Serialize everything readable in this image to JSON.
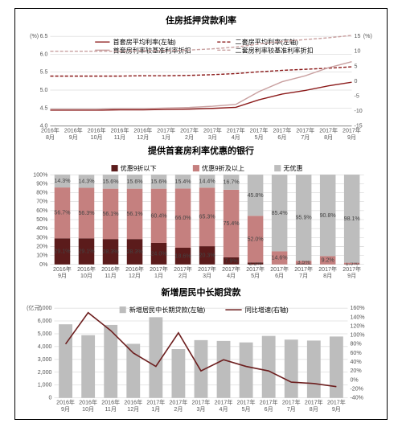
{
  "chart1": {
    "title": "住房抵押贷款利率",
    "yLeftLabel": "(%)",
    "yRightLabel": "(%)",
    "xLabels": [
      "2016年8月",
      "2016年9月",
      "2016年10月",
      "2016年11月",
      "2016年12月",
      "2017年1月",
      "2017年2月",
      "2017年3月",
      "2017年4月",
      "2017年5月",
      "2017年6月",
      "2017年7月",
      "2017年8月",
      "2017年9月"
    ],
    "yLeft": {
      "min": 4.0,
      "max": 6.5,
      "step": 0.5
    },
    "yRight": {
      "min": -15,
      "max": 15,
      "step": 5
    },
    "series": [
      {
        "name": "首套房平均利率(左轴)",
        "axis": "left",
        "color": "#8b1a1a",
        "dash": false,
        "values": [
          4.44,
          4.44,
          4.44,
          4.45,
          4.45,
          4.46,
          4.47,
          4.49,
          4.52,
          4.73,
          4.89,
          4.99,
          5.12,
          5.22
        ]
      },
      {
        "name": "二套房平均利率(左轴)",
        "axis": "left",
        "color": "#8b1a1a",
        "dash": true,
        "values": [
          5.39,
          5.39,
          5.39,
          5.39,
          5.4,
          5.4,
          5.41,
          5.43,
          5.46,
          5.51,
          5.55,
          5.58,
          5.61,
          5.65
        ]
      },
      {
        "name": "首套房利率较基准利率折扣",
        "axis": "right",
        "color": "#c9a0a0",
        "dash": false,
        "values": [
          -9.4,
          -9.4,
          -9.4,
          -9.2,
          -9.2,
          -9.0,
          -8.8,
          -8.4,
          -7.8,
          -3.5,
          -0.2,
          1.8,
          4.5,
          6.5
        ]
      },
      {
        "name": "二套房利率较基准利率折扣",
        "axis": "right",
        "color": "#c9a0a0",
        "dash": true,
        "values": [
          10.0,
          10.0,
          10.0,
          10.0,
          10.2,
          10.2,
          10.4,
          10.8,
          11.4,
          12.4,
          13.3,
          13.9,
          14.5,
          15.3
        ]
      }
    ],
    "background": "#ffffff",
    "gridColor": "#cccccc"
  },
  "chart2": {
    "title": "提供首套房利率优惠的银行",
    "yLabel": "",
    "yLeft": {
      "min": 0,
      "max": 100,
      "step": 10
    },
    "xLabels": [
      "2016年9月",
      "2016年10月",
      "2016年11月",
      "2016年12月",
      "2017年1月",
      "2017年2月",
      "2017年3月",
      "2017年4月",
      "2017年5月",
      "2017年6月",
      "2017年7月",
      "2017年8月",
      "2017年9月"
    ],
    "legend": [
      "优惠9折以下",
      "优惠9折及以上",
      "无优惠"
    ],
    "colors": [
      "#5b1b1b",
      "#c5807f",
      "#bdbdbd"
    ],
    "stacks": [
      [
        29.1,
        56.7,
        14.3
      ],
      [
        29.1,
        56.3,
        14.3
      ],
      [
        28.3,
        56.1,
        15.6
      ],
      [
        28.3,
        56.1,
        15.6
      ],
      [
        24.0,
        60.4,
        15.6
      ],
      [
        18.6,
        66.0,
        15.4
      ],
      [
        20.3,
        65.3,
        14.4
      ],
      [
        7.9,
        75.4,
        16.7
      ],
      [
        2.2,
        52.0,
        45.8
      ],
      [
        0.0,
        14.6,
        85.4
      ],
      [
        0.6,
        3.5,
        95.9
      ],
      [
        0.0,
        9.2,
        90.8
      ],
      [
        0.4,
        1.5,
        98.1
      ]
    ]
  },
  "chart3": {
    "title": "新增居民中长期贷款",
    "yLeftLabel": "(亿元)",
    "yRightLabel": "",
    "yLeft": {
      "min": 0,
      "max": 7000,
      "step": 1000
    },
    "yRight": {
      "min": -40,
      "max": 160,
      "step": 20
    },
    "xLabels": [
      "2016年9月",
      "2016年10月",
      "2016年11月",
      "2016年12月",
      "2017年1月",
      "2017年2月",
      "2017年3月",
      "2017年4月",
      "2017年5月",
      "2017年6月",
      "2017年7月",
      "2017年8月",
      "2017年9月"
    ],
    "bars": {
      "name": "新增居民中长期贷款(左轴)",
      "color": "#bdbdbd",
      "values": [
        5741,
        4891,
        5692,
        4217,
        6293,
        3804,
        4503,
        4441,
        4326,
        4833,
        4544,
        4470,
        4786
      ]
    },
    "line": {
      "name": "同比增速(右轴)",
      "color": "#6d1f1f",
      "values": [
        80,
        150,
        110,
        60,
        30,
        105,
        20,
        45,
        30,
        20,
        -5,
        -8,
        -15
      ]
    }
  }
}
